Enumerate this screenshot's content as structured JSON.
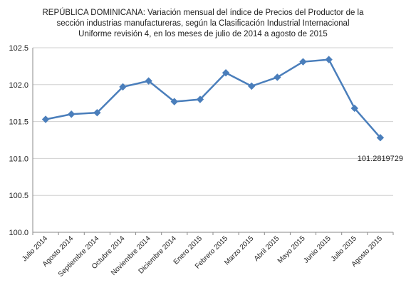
{
  "chart_data": {
    "type": "line",
    "title_lines": [
      "REPÚBLICA DOMINICANA: Variación mensual del índice de Precios del Productor de la",
      "sección  industrias manufactureras, según la Clasificación Industrial Internacional",
      "Uniforme revisión 4, en los meses de julio de 2014 a agosto de 2015"
    ],
    "categories": [
      "Julio 2014",
      "Agosto 2014",
      "Septiembre 2014",
      "Octubre 2014",
      "Noviembre 2014",
      "Diciembre 2014",
      "Enero 2015",
      "Febrero 2015",
      "Marzo 2015",
      "Abril 2015",
      "Mayo 2015",
      "Junio 2015",
      "Julio 2015",
      "Agosto 2015"
    ],
    "series": [
      {
        "values": [
          101.53,
          101.6,
          101.62,
          101.97,
          102.05,
          101.77,
          101.8,
          102.16,
          101.98,
          102.1,
          102.31,
          102.34,
          101.68,
          101.2819729
        ],
        "color": "#4a7ebb"
      }
    ],
    "yticks": [
      "100.0",
      "100.5",
      "101.0",
      "101.5",
      "102.0",
      "102.5"
    ],
    "ylim": [
      100.0,
      102.5
    ],
    "grid": true,
    "legend": "none",
    "data_labels": [
      {
        "index": 13,
        "text": "101.2819729"
      }
    ]
  }
}
